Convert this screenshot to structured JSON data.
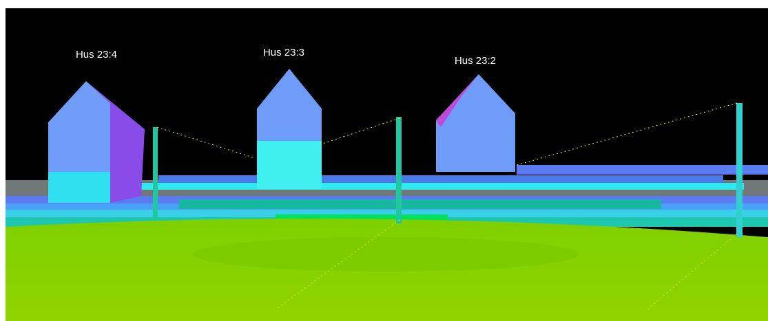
{
  "scene": {
    "labels": [
      "Hus 23:4",
      "Hus 23:3",
      "Hus 23:2"
    ]
  }
}
